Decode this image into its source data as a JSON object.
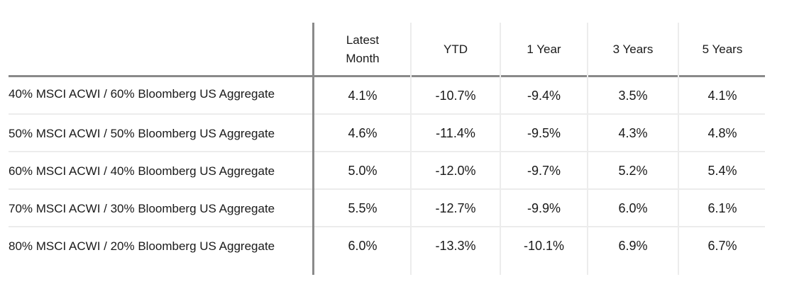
{
  "chart_data": {
    "type": "table",
    "columns": [
      "",
      "Latest\nMonth",
      "YTD",
      "1 Year",
      "3 Years",
      "5 Years"
    ],
    "rows": [
      {
        "label": "40% MSCI ACWI / 60% Bloomberg US Aggregate",
        "values": [
          "4.1%",
          "-10.7%",
          "-9.4%",
          "3.5%",
          "4.1%"
        ]
      },
      {
        "label": "50% MSCI ACWI / 50% Bloomberg US Aggregate",
        "values": [
          "4.6%",
          "-11.4%",
          "-9.5%",
          "4.3%",
          "4.8%"
        ]
      },
      {
        "label": "60% MSCI ACWI / 40% Bloomberg US Aggregate",
        "values": [
          "5.0%",
          "-12.0%",
          "-9.7%",
          "5.2%",
          "5.4%"
        ]
      },
      {
        "label": "70% MSCI ACWI / 30% Bloomberg US Aggregate",
        "values": [
          "5.5%",
          "-12.7%",
          "-9.9%",
          "6.0%",
          "6.1%"
        ]
      },
      {
        "label": "80% MSCI ACWI / 20% Bloomberg US Aggregate",
        "values": [
          "6.0%",
          "-13.3%",
          "-10.1%",
          "6.9%",
          "6.7%"
        ]
      }
    ]
  }
}
